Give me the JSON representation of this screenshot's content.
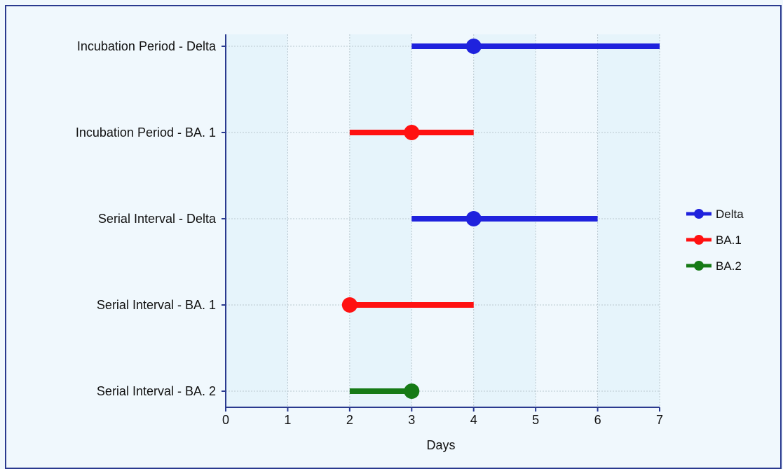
{
  "chart_data": {
    "type": "dot-range",
    "title": "",
    "xlabel": "Days",
    "ylabel": "",
    "xlim": [
      0,
      7
    ],
    "x_ticks": [
      "0",
      "1",
      "2",
      "3",
      "4",
      "5",
      "6",
      "7"
    ],
    "grid": true,
    "legend_position": "right",
    "categories": [
      "Incubation Period - Delta",
      "Incubation Period - BA. 1",
      "Serial Interval - Delta",
      "Serial Interval - BA. 1",
      "Serial Interval - BA. 2"
    ],
    "rows": [
      {
        "category": "Incubation Period - Delta",
        "variant": "Delta",
        "point": 4,
        "low": 3,
        "high": 7
      },
      {
        "category": "Incubation Period - BA. 1",
        "variant": "BA.1",
        "point": 3,
        "low": 2,
        "high": 4
      },
      {
        "category": "Serial Interval - Delta",
        "variant": "Delta",
        "point": 4,
        "low": 3,
        "high": 6
      },
      {
        "category": "Serial Interval - BA. 1",
        "variant": "BA.1",
        "point": 2,
        "low": 2,
        "high": 4
      },
      {
        "category": "Serial Interval - BA. 2",
        "variant": "BA.2",
        "point": 3,
        "low": 2,
        "high": 3
      }
    ],
    "series": [
      {
        "name": "Delta",
        "color": "#1f22dd"
      },
      {
        "name": "BA.1",
        "color": "#ff1111"
      },
      {
        "name": "BA.2",
        "color": "#167a16"
      }
    ],
    "colors": {
      "plot_band": "#e6f4fb",
      "plot_background": "#f0f8fd",
      "axis": "#2a3a8f",
      "grid": "#b9c7cf"
    }
  }
}
